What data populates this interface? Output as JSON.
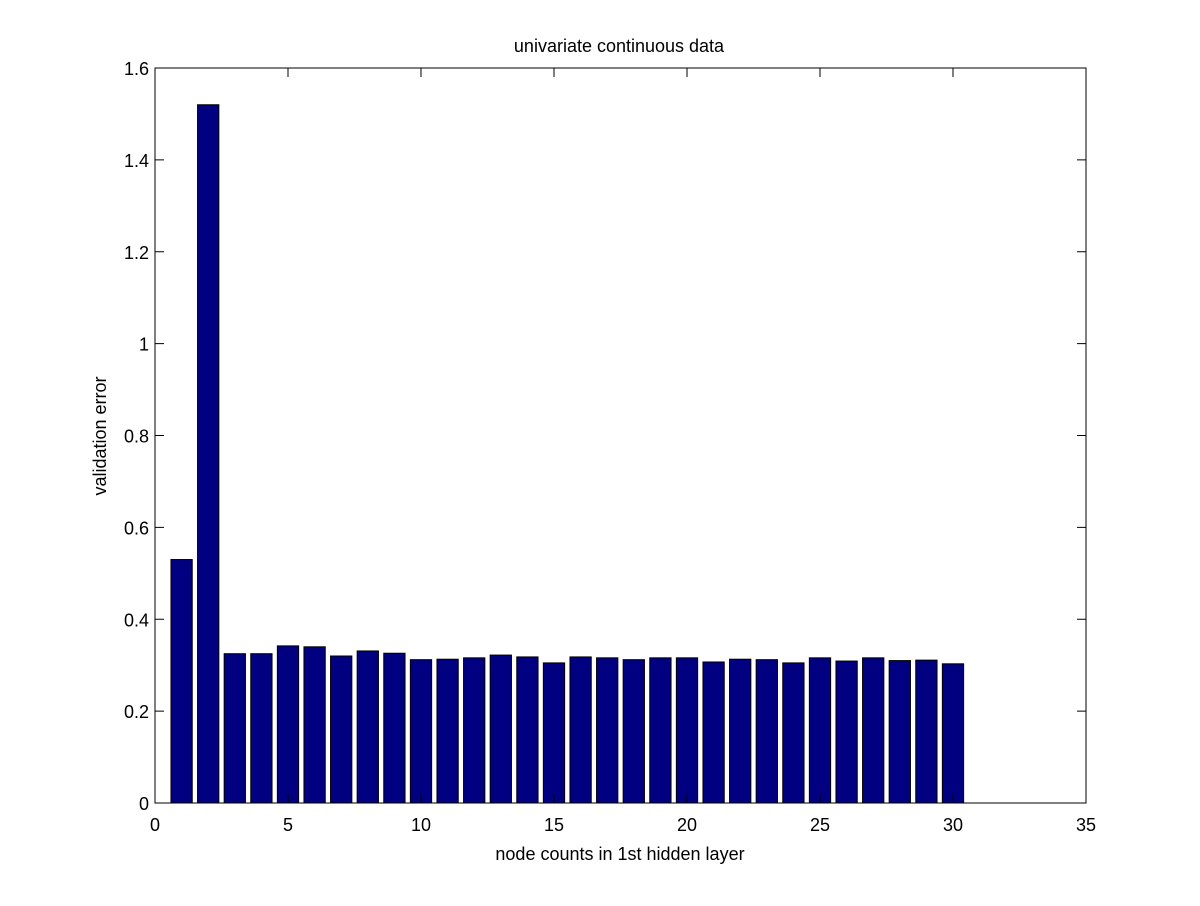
{
  "chart_data": {
    "type": "bar",
    "title": "univariate continuous data",
    "xlabel": "node counts in 1st hidden layer",
    "ylabel": "validation error",
    "xlim": [
      0,
      35
    ],
    "ylim": [
      0,
      1.6
    ],
    "xticks": [
      0,
      5,
      10,
      15,
      20,
      25,
      30,
      35
    ],
    "xtick_labels": [
      "0",
      "5",
      "10",
      "15",
      "20",
      "25",
      "30",
      "35"
    ],
    "yticks": [
      0,
      0.2,
      0.4,
      0.6,
      0.8,
      1.0,
      1.2,
      1.4,
      1.6
    ],
    "ytick_labels": [
      "0",
      "0.2",
      "0.4",
      "0.6",
      "0.8",
      "1",
      "1.2",
      "1.4",
      "1.6"
    ],
    "grid": false,
    "bar_color": "#000080",
    "bar_width": 0.8,
    "x": [
      1,
      2,
      3,
      4,
      5,
      6,
      7,
      8,
      9,
      10,
      11,
      12,
      13,
      14,
      15,
      16,
      17,
      18,
      19,
      20,
      21,
      22,
      23,
      24,
      25,
      26,
      27,
      28,
      29,
      30
    ],
    "values": [
      0.53,
      1.52,
      0.325,
      0.325,
      0.342,
      0.34,
      0.32,
      0.331,
      0.326,
      0.312,
      0.313,
      0.316,
      0.322,
      0.318,
      0.305,
      0.318,
      0.316,
      0.312,
      0.316,
      0.316,
      0.307,
      0.313,
      0.312,
      0.305,
      0.316,
      0.309,
      0.316,
      0.31,
      0.311,
      0.303
    ]
  }
}
